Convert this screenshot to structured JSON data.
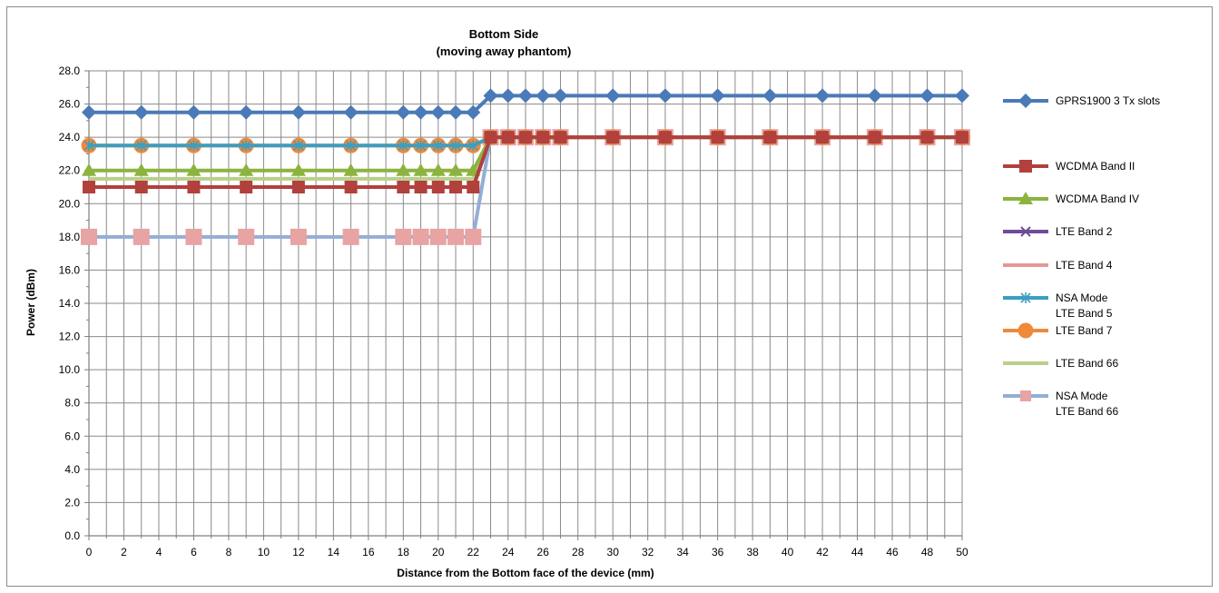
{
  "chart_data": {
    "type": "line",
    "title": "Bottom Side",
    "subtitle": "(moving away phantom)",
    "xlabel": "Distance from the Bottom face of the device (mm)",
    "ylabel": "Power (dBm)",
    "xlim": [
      0,
      50
    ],
    "ylim": [
      0,
      28
    ],
    "x_ticks": [
      "0",
      "2",
      "4",
      "6",
      "8",
      "10",
      "12",
      "14",
      "16",
      "18",
      "20",
      "22",
      "24",
      "26",
      "28",
      "30",
      "32",
      "34",
      "36",
      "38",
      "40",
      "42",
      "44",
      "46",
      "48",
      "50"
    ],
    "y_ticks": [
      "0.0",
      "2.0",
      "4.0",
      "6.0",
      "8.0",
      "10.0",
      "12.0",
      "14.0",
      "16.0",
      "18.0",
      "20.0",
      "22.0",
      "24.0",
      "26.0",
      "28.0"
    ],
    "grid": true,
    "legend_position": "right",
    "x": [
      0,
      3,
      6,
      9,
      12,
      15,
      18,
      19,
      20,
      21,
      22,
      23,
      24,
      25,
      26,
      27,
      30,
      33,
      36,
      39,
      42,
      45,
      48,
      50
    ],
    "series": [
      {
        "name": "GPRS1900 3 Tx slots",
        "color": "#4a7ab7",
        "marker": "diamond",
        "values": [
          25.5,
          25.5,
          25.5,
          25.5,
          25.5,
          25.5,
          25.5,
          25.5,
          25.5,
          25.5,
          25.5,
          26.5,
          26.5,
          26.5,
          26.5,
          26.5,
          26.5,
          26.5,
          26.5,
          26.5,
          26.5,
          26.5,
          26.5,
          26.5
        ]
      },
      {
        "name": "WCDMA Band II",
        "color": "#b2403d",
        "marker": "square",
        "values": [
          21,
          21,
          21,
          21,
          21,
          21,
          21,
          21,
          21,
          21,
          21,
          24,
          24,
          24,
          24,
          24,
          24,
          24,
          24,
          24,
          24,
          24,
          24,
          24
        ]
      },
      {
        "name": "WCDMA Band IV",
        "color": "#8cb33f",
        "marker": "triangle",
        "values": [
          22,
          22,
          22,
          22,
          22,
          22,
          22,
          22,
          22,
          22,
          22,
          24,
          24,
          24,
          24,
          24,
          24,
          24,
          24,
          24,
          24,
          24,
          24,
          24
        ]
      },
      {
        "name": "LTE Band 2",
        "color": "#6e4c99",
        "marker": "x",
        "values": [
          21,
          21,
          21,
          21,
          21,
          21,
          21,
          21,
          21,
          21,
          21,
          24,
          24,
          24,
          24,
          24,
          24,
          24,
          24,
          24,
          24,
          24,
          24,
          24
        ]
      },
      {
        "name": "LTE Band 4",
        "color": "#e49896",
        "marker": "none",
        "values": [
          21,
          21,
          21,
          21,
          21,
          21,
          21,
          21,
          21,
          21,
          21,
          24,
          24,
          24,
          24,
          24,
          24,
          24,
          24,
          24,
          24,
          24,
          24,
          24
        ]
      },
      {
        "name": "NSA Mode LTE Band 5",
        "legend_lines": [
          "NSA Mode",
          "LTE Band 5"
        ],
        "color": "#3d9ec0",
        "marker": "star",
        "values": [
          23.5,
          23.5,
          23.5,
          23.5,
          23.5,
          23.5,
          23.5,
          23.5,
          23.5,
          23.5,
          23.5,
          24,
          24,
          24,
          24,
          24,
          24,
          24,
          24,
          24,
          24,
          24,
          24,
          24
        ]
      },
      {
        "name": "LTE Band 7",
        "color": "#ee8a3a",
        "marker": "circle",
        "values": [
          23.5,
          23.5,
          23.5,
          23.5,
          23.5,
          23.5,
          23.5,
          23.5,
          23.5,
          23.5,
          23.5,
          24,
          24,
          24,
          24,
          24,
          24,
          24,
          24,
          24,
          24,
          24,
          24,
          24
        ]
      },
      {
        "name": "LTE Band 66",
        "color": "#b9cf8a",
        "marker": "none",
        "values": [
          21.5,
          21.5,
          21.5,
          21.5,
          21.5,
          21.5,
          21.5,
          21.5,
          21.5,
          21.5,
          21.5,
          24,
          24,
          24,
          24,
          24,
          24,
          24,
          24,
          24,
          24,
          24,
          24,
          24
        ]
      },
      {
        "name": "NSA Mode LTE Band 66",
        "legend_lines": [
          "NSA Mode",
          "LTE Band 66"
        ],
        "color": "#93aed6",
        "marker": "square-pink",
        "marker_color": "#e8a3a3",
        "values": [
          18,
          18,
          18,
          18,
          18,
          18,
          18,
          18,
          18,
          18,
          18,
          24,
          24,
          24,
          24,
          24,
          24,
          24,
          24,
          24,
          24,
          24,
          24,
          24
        ]
      }
    ]
  }
}
